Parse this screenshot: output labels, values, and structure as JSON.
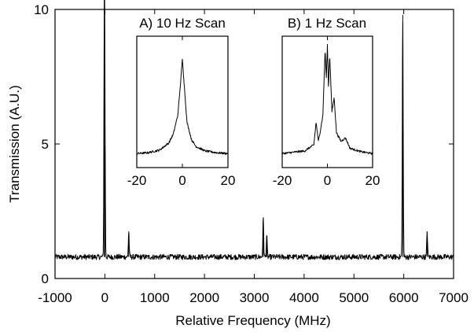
{
  "chart_data": [
    {
      "type": "line",
      "title": "",
      "xlabel": "Relative Frequency (MHz)",
      "ylabel": "Transmission (A.U.)",
      "xlim": [
        -1000,
        7000
      ],
      "ylim": [
        0,
        10
      ],
      "xticks": [
        -1000,
        0,
        1000,
        2000,
        3000,
        4000,
        5000,
        6000,
        7000
      ],
      "yticks": [
        0,
        5,
        10
      ],
      "baseline": 0.8,
      "noise": 0.1,
      "peaks": [
        {
          "x": -10,
          "y": 9.2
        },
        {
          "x": 0,
          "y": 4.9
        },
        {
          "x": 480,
          "y": 1.75
        },
        {
          "x": 3180,
          "y": 2.25
        },
        {
          "x": 3250,
          "y": 1.6
        },
        {
          "x": 5980,
          "y": 9.8
        },
        {
          "x": 6470,
          "y": 1.75
        }
      ]
    },
    {
      "type": "line",
      "title": "A) 10 Hz Scan",
      "xlim": [
        -20,
        20
      ],
      "xticks": [
        -20,
        0,
        20
      ],
      "points": [
        [
          -20,
          0.8
        ],
        [
          -15,
          0.85
        ],
        [
          -10,
          1.0
        ],
        [
          -6,
          1.4
        ],
        [
          -4,
          1.9
        ],
        [
          -2,
          3.0
        ],
        [
          -1,
          4.5
        ],
        [
          0,
          6.2
        ],
        [
          1,
          4.4
        ],
        [
          2,
          2.6
        ],
        [
          4,
          1.6
        ],
        [
          6,
          1.2
        ],
        [
          10,
          0.95
        ],
        [
          15,
          0.85
        ],
        [
          20,
          0.8
        ]
      ]
    },
    {
      "type": "line",
      "title": "B) 1 Hz Scan",
      "xlim": [
        -20,
        20
      ],
      "xticks": [
        -20,
        0,
        20
      ],
      "points": [
        [
          -20,
          0.8
        ],
        [
          -10,
          0.95
        ],
        [
          -6,
          1.3
        ],
        [
          -5,
          2.6
        ],
        [
          -4,
          1.5
        ],
        [
          -3,
          2.2
        ],
        [
          -2,
          3.0
        ],
        [
          -1,
          6.8
        ],
        [
          -0.5,
          5.0
        ],
        [
          0,
          7.0
        ],
        [
          0.5,
          4.5
        ],
        [
          1,
          6.5
        ],
        [
          2,
          3.2
        ],
        [
          3,
          4.0
        ],
        [
          4,
          2.0
        ],
        [
          6,
          1.5
        ],
        [
          8,
          1.7
        ],
        [
          10,
          1.1
        ],
        [
          15,
          0.9
        ],
        [
          20,
          0.8
        ]
      ]
    }
  ]
}
